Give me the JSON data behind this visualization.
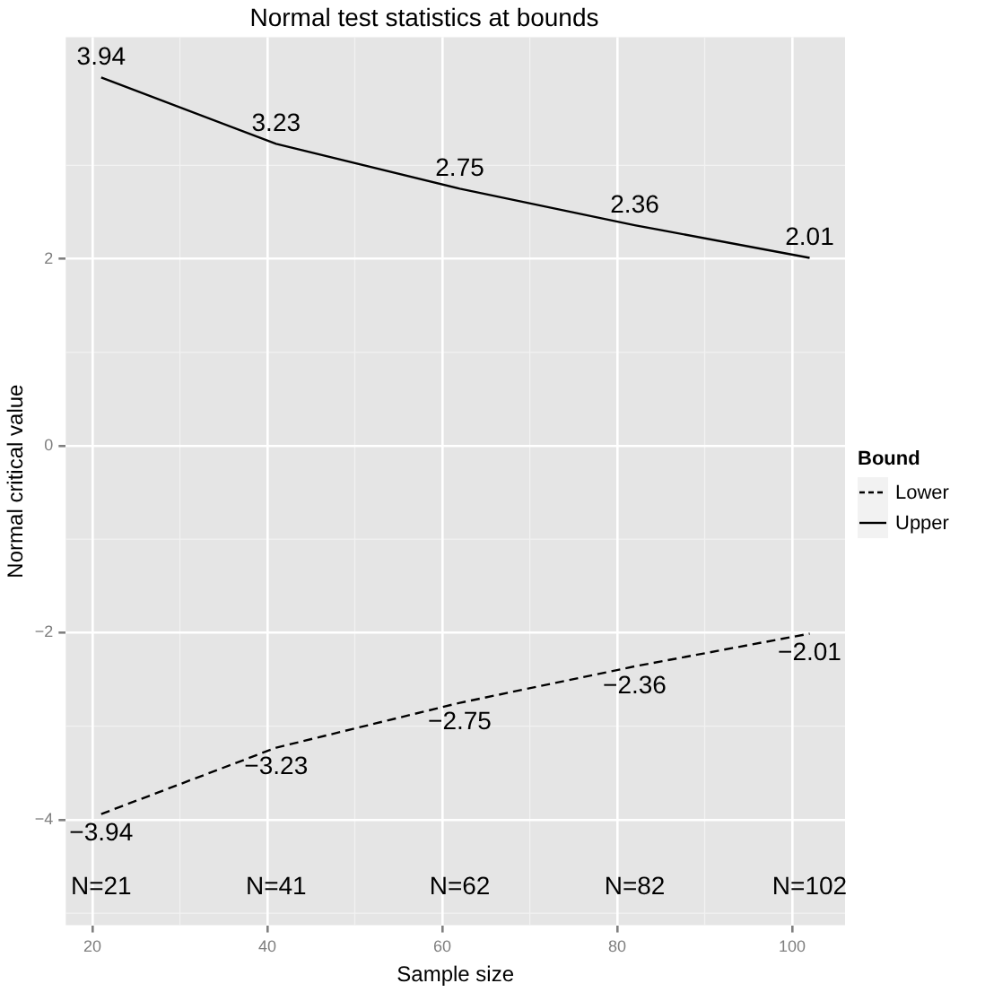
{
  "chart_data": {
    "type": "line",
    "title": "Normal test statistics at bounds",
    "xlabel": "Sample size",
    "ylabel": "Normal critical value",
    "legend_title": "Bound",
    "x": [
      21,
      41,
      62,
      82,
      102
    ],
    "series": [
      {
        "name": "Lower",
        "color": "#000000",
        "line_style": "dashed",
        "values": [
          -3.94,
          -3.23,
          -2.75,
          -2.36,
          -2.01
        ]
      },
      {
        "name": "Upper",
        "color": "#000000",
        "line_style": "solid",
        "values": [
          3.94,
          3.23,
          2.75,
          2.36,
          2.01
        ]
      }
    ],
    "data_labels": true,
    "annotations": [
      "N=21",
      "N=41",
      "N=62",
      "N=82",
      "N=102"
    ],
    "xlim": [
      16.95,
      106.05
    ],
    "xticks": [
      20,
      40,
      60,
      80,
      100
    ],
    "ylim": [
      -5.13,
      4.37
    ],
    "yticks": [
      -4,
      -2,
      0,
      2
    ],
    "grid": true,
    "legend": "right",
    "marker": "none"
  }
}
